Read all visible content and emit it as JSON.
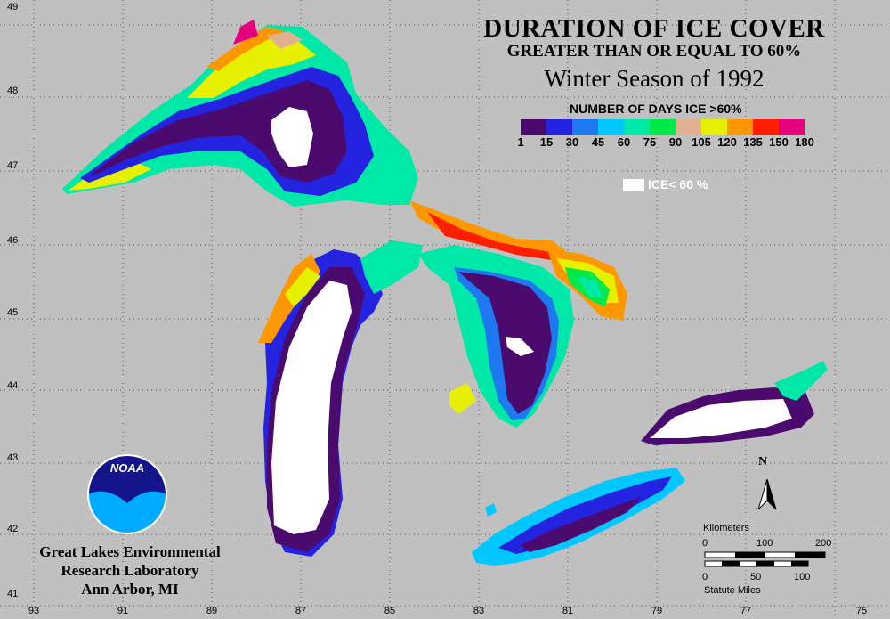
{
  "title": "DURATION OF ICE COVER",
  "subtitle": "GREATER THAN OR EQUAL TO 60%",
  "season": "Winter Season of 1992",
  "legend": {
    "title": "NUMBER OF DAYS ICE >60%",
    "colors": [
      "#4b0a6e",
      "#2323e0",
      "#1e78f0",
      "#00c8ff",
      "#00e8a8",
      "#00e84a",
      "#e0b090",
      "#e6f000",
      "#ff9800",
      "#ff1e00",
      "#e6007e"
    ],
    "labels": [
      "1",
      "15",
      "30",
      "45",
      "60",
      "75",
      "90",
      "105",
      "120",
      "135",
      "150",
      "180"
    ],
    "ice_label": "ICE< 60 %"
  },
  "latitudes": [
    "49",
    "48",
    "47",
    "46",
    "45",
    "44",
    "43",
    "42",
    "41"
  ],
  "longitudes": [
    "93",
    "91",
    "89",
    "87",
    "85",
    "83",
    "81",
    "79",
    "77",
    "75"
  ],
  "credit": {
    "line1": "Great Lakes Environmental",
    "line2": "Research Laboratory",
    "line3": "Ann Arbor, MI",
    "logo": "NOAA"
  },
  "north_label": "N",
  "scale": {
    "km_title": "Kilometers",
    "km_ticks": [
      "0",
      "100",
      "200"
    ],
    "mi_ticks": [
      "0",
      "50",
      "100"
    ],
    "mi_title": "Statute Miles"
  }
}
